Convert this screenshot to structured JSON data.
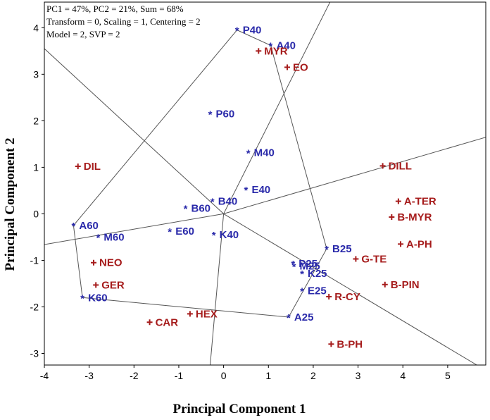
{
  "chart_data": {
    "type": "scatter",
    "title": "",
    "xlabel": "Principal Component 1",
    "ylabel": "Principal Component 2",
    "xlim": [
      -4,
      5.85
    ],
    "ylim": [
      -3.25,
      4.55
    ],
    "xticks": [
      -4,
      -3,
      -2,
      -1,
      0,
      1,
      2,
      3,
      4,
      5
    ],
    "yticks": [
      -3,
      -2,
      -1,
      0,
      1,
      2,
      3,
      4
    ],
    "info_lines": [
      "PC1 = 47%, PC2 = 21%, Sum = 68%",
      "Transform = 0, Scaling = 1, Centering = 2",
      "Model = 2, SVP = 2"
    ],
    "colors": {
      "samples": "#2a2aaa",
      "variables": "#a61c1c",
      "lines": "#555555"
    },
    "series": [
      {
        "name": "samples",
        "marker": "*",
        "points": [
          {
            "label": "P40",
            "x": 0.3,
            "y": 3.95
          },
          {
            "label": "A40",
            "x": 1.05,
            "y": 3.62
          },
          {
            "label": "P60",
            "x": -0.3,
            "y": 2.15
          },
          {
            "label": "M40",
            "x": 0.55,
            "y": 1.32
          },
          {
            "label": "E40",
            "x": 0.5,
            "y": 0.52
          },
          {
            "label": "B40",
            "x": -0.25,
            "y": 0.27
          },
          {
            "label": "B60",
            "x": -0.85,
            "y": 0.12
          },
          {
            "label": "E60",
            "x": -1.2,
            "y": -0.37
          },
          {
            "label": "K40",
            "x": -0.22,
            "y": -0.45
          },
          {
            "label": "A60",
            "x": -3.35,
            "y": -0.25
          },
          {
            "label": "M60",
            "x": -2.8,
            "y": -0.5
          },
          {
            "label": "B25",
            "x": 2.3,
            "y": -0.75
          },
          {
            "label": "P25",
            "x": 1.55,
            "y": -1.07
          },
          {
            "label": "M25",
            "x": 1.57,
            "y": -1.12
          },
          {
            "label": "K25",
            "x": 1.75,
            "y": -1.28
          },
          {
            "label": "E25",
            "x": 1.75,
            "y": -1.65
          },
          {
            "label": "K60",
            "x": -3.15,
            "y": -1.8
          },
          {
            "label": "A25",
            "x": 1.45,
            "y": -2.22
          }
        ]
      },
      {
        "name": "variables",
        "marker": "+",
        "points": [
          {
            "label": "MYR",
            "x": 0.78,
            "y": 3.5
          },
          {
            "label": "EO",
            "x": 1.42,
            "y": 3.15
          },
          {
            "label": "DIL",
            "x": -3.25,
            "y": 1.02
          },
          {
            "label": "DILL",
            "x": 3.55,
            "y": 1.03
          },
          {
            "label": "A-TER",
            "x": 3.9,
            "y": 0.27
          },
          {
            "label": "B-MYR",
            "x": 3.75,
            "y": -0.07
          },
          {
            "label": "A-PH",
            "x": 3.95,
            "y": -0.65
          },
          {
            "label": "G-TE",
            "x": 2.95,
            "y": -0.97
          },
          {
            "label": "NEO",
            "x": -2.9,
            "y": -1.05
          },
          {
            "label": "GER",
            "x": -2.85,
            "y": -1.53
          },
          {
            "label": "B-PIN",
            "x": 3.6,
            "y": -1.52
          },
          {
            "label": "R-CY",
            "x": 2.35,
            "y": -1.78
          },
          {
            "label": "HEX",
            "x": -0.75,
            "y": -2.15
          },
          {
            "label": "CAR",
            "x": -1.65,
            "y": -2.33
          },
          {
            "label": "B-PH",
            "x": 2.4,
            "y": -2.8
          }
        ]
      }
    ],
    "polygon": [
      [
        0.3,
        3.95
      ],
      [
        1.05,
        3.62
      ],
      [
        2.3,
        -0.75
      ],
      [
        1.45,
        -2.22
      ],
      [
        -3.15,
        -1.8
      ],
      [
        -3.35,
        -0.25
      ],
      [
        0.3,
        3.95
      ]
    ],
    "rays": [
      [
        [
          0,
          0
        ],
        [
          -4,
          3.55
        ]
      ],
      [
        [
          0,
          0
        ],
        [
          5.9,
          1.66
        ]
      ],
      [
        [
          0,
          0
        ],
        [
          -4,
          -0.66
        ]
      ],
      [
        [
          0,
          0
        ],
        [
          2.4,
          4.6
        ]
      ],
      [
        [
          0,
          0
        ],
        [
          5.65,
          -3.25
        ]
      ],
      [
        [
          0,
          0
        ],
        [
          -0.3,
          -3.25
        ]
      ]
    ],
    "grid": false,
    "legend": "none"
  }
}
